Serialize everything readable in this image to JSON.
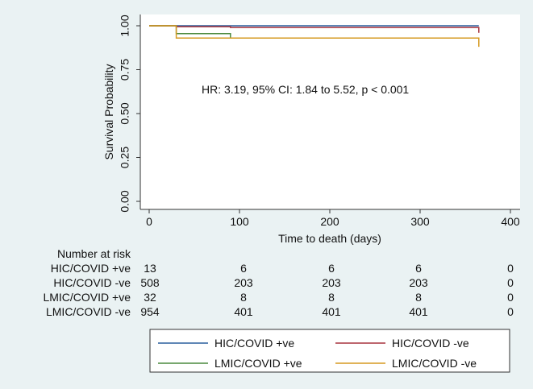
{
  "chart_data": {
    "type": "line",
    "title": "",
    "xlabel": "Time to death (days)",
    "ylabel": "Survival Probability",
    "xlim": [
      0,
      400
    ],
    "ylim": [
      0,
      1
    ],
    "xticks": [
      0,
      100,
      200,
      300,
      400
    ],
    "yticks": [
      "0.00",
      "0.25",
      "0.50",
      "0.75",
      "1.00"
    ],
    "annotation": "HR: 3.19, 95% CI: 1.84 to 5.52, p < 0.001",
    "series": [
      {
        "name": "HIC/COVID +ve",
        "color": "#2a5f9e",
        "steps": [
          [
            0,
            1.0
          ],
          [
            365,
            1.0
          ]
        ]
      },
      {
        "name": "HIC/COVID -ve",
        "color": "#a8343f",
        "steps": [
          [
            0,
            1.0
          ],
          [
            30,
            0.995
          ],
          [
            90,
            0.99
          ],
          [
            365,
            0.99
          ],
          [
            365,
            0.96
          ]
        ]
      },
      {
        "name": "LMIC/COVID +ve",
        "color": "#4c8a3f",
        "steps": [
          [
            0,
            1.0
          ],
          [
            30,
            0.955
          ],
          [
            90,
            0.955
          ],
          [
            90,
            0.93
          ],
          [
            365,
            0.93
          ]
        ]
      },
      {
        "name": "LMIC/COVID -ve",
        "color": "#d69a22",
        "steps": [
          [
            0,
            1.0
          ],
          [
            30,
            1.0
          ],
          [
            30,
            0.93
          ],
          [
            365,
            0.93
          ],
          [
            365,
            0.88
          ]
        ]
      }
    ],
    "risk_table": {
      "title": "Number at risk",
      "times": [
        0,
        100,
        200,
        300,
        400
      ],
      "rows": [
        {
          "label": "HIC/COVID +ve",
          "values": [
            "13",
            "6",
            "6",
            "6",
            "0"
          ]
        },
        {
          "label": "HIC/COVID -ve",
          "values": [
            "508",
            "203",
            "203",
            "203",
            "0"
          ]
        },
        {
          "label": "LMIC/COVID +ve",
          "values": [
            "32",
            "8",
            "8",
            "8",
            "0"
          ]
        },
        {
          "label": "LMIC/COVID -ve",
          "values": [
            "954",
            "401",
            "401",
            "401",
            "0"
          ]
        }
      ]
    },
    "legend": {
      "position": "bottom",
      "columns": 2
    }
  }
}
